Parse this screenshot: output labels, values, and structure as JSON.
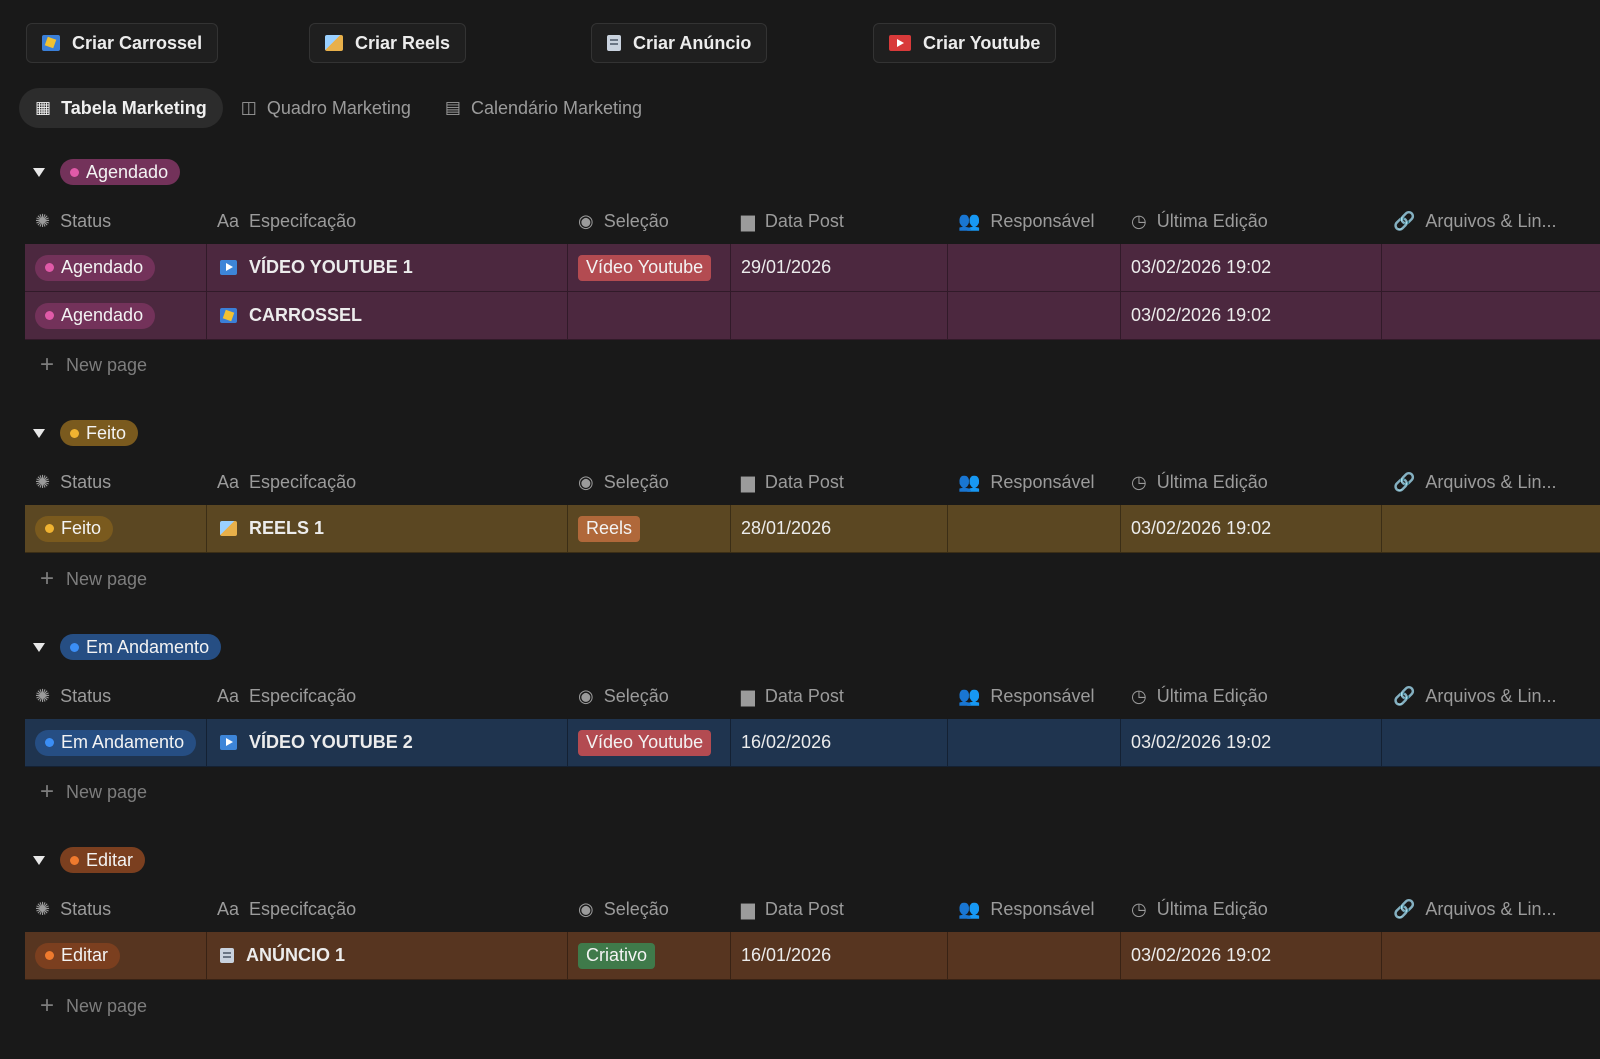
{
  "toolbar": {
    "buttons": [
      {
        "label": "Criar Carrossel",
        "icon": "carousel-icon"
      },
      {
        "label": "Criar Reels",
        "icon": "reels-icon"
      },
      {
        "label": "Criar Anúncio",
        "icon": "ad-icon"
      },
      {
        "label": "Criar Youtube",
        "icon": "youtube-icon"
      }
    ]
  },
  "views": [
    {
      "label": "Tabela Marketing",
      "icon": "table-icon",
      "active": true
    },
    {
      "label": "Quadro Marketing",
      "icon": "board-icon",
      "active": false
    },
    {
      "label": "Calendário Marketing",
      "icon": "calendar-icon",
      "active": false
    }
  ],
  "columns": {
    "status": "Status",
    "spec": "Especifcação",
    "selection": "Seleção",
    "date": "Data Post",
    "responsible": "Responsável",
    "edited": "Última Edição",
    "files": "Arquivos & Lin..."
  },
  "new_page_label": "New page",
  "groups": [
    {
      "name": "Agendado",
      "color": "#e05aa8",
      "rows": [
        {
          "status": "Agendado",
          "title": "VÍDEO YOUTUBE 1",
          "icon": "youtube-icon",
          "selection": "Vídeo Youtube",
          "date": "29/01/2026",
          "responsible": "",
          "edited": "03/02/2026 19:02",
          "files": ""
        },
        {
          "status": "Agendado",
          "title": "CARROSSEL",
          "icon": "carousel-icon",
          "selection": "",
          "date": "",
          "responsible": "",
          "edited": "03/02/2026 19:02",
          "files": ""
        }
      ]
    },
    {
      "name": "Feito",
      "color": "#f0b331",
      "rows": [
        {
          "status": "Feito",
          "title": "REELS 1",
          "icon": "reels-icon",
          "selection": "Reels",
          "date": "28/01/2026",
          "responsible": "",
          "edited": "03/02/2026 19:02",
          "files": ""
        }
      ]
    },
    {
      "name": "Em Andamento",
      "color": "#3b8ef5",
      "rows": [
        {
          "status": "Em Andamento",
          "title": "VÍDEO YOUTUBE 2",
          "icon": "youtube-icon",
          "selection": "Vídeo Youtube",
          "date": "16/02/2026",
          "responsible": "",
          "edited": "03/02/2026 19:02",
          "files": ""
        }
      ]
    },
    {
      "name": "Editar",
      "color": "#ef7a2e",
      "rows": [
        {
          "status": "Editar",
          "title": "ANÚNCIO 1",
          "icon": "ad-icon",
          "selection": "Criativo",
          "date": "16/01/2026",
          "responsible": "",
          "edited": "03/02/2026 19:02",
          "files": ""
        }
      ]
    }
  ]
}
